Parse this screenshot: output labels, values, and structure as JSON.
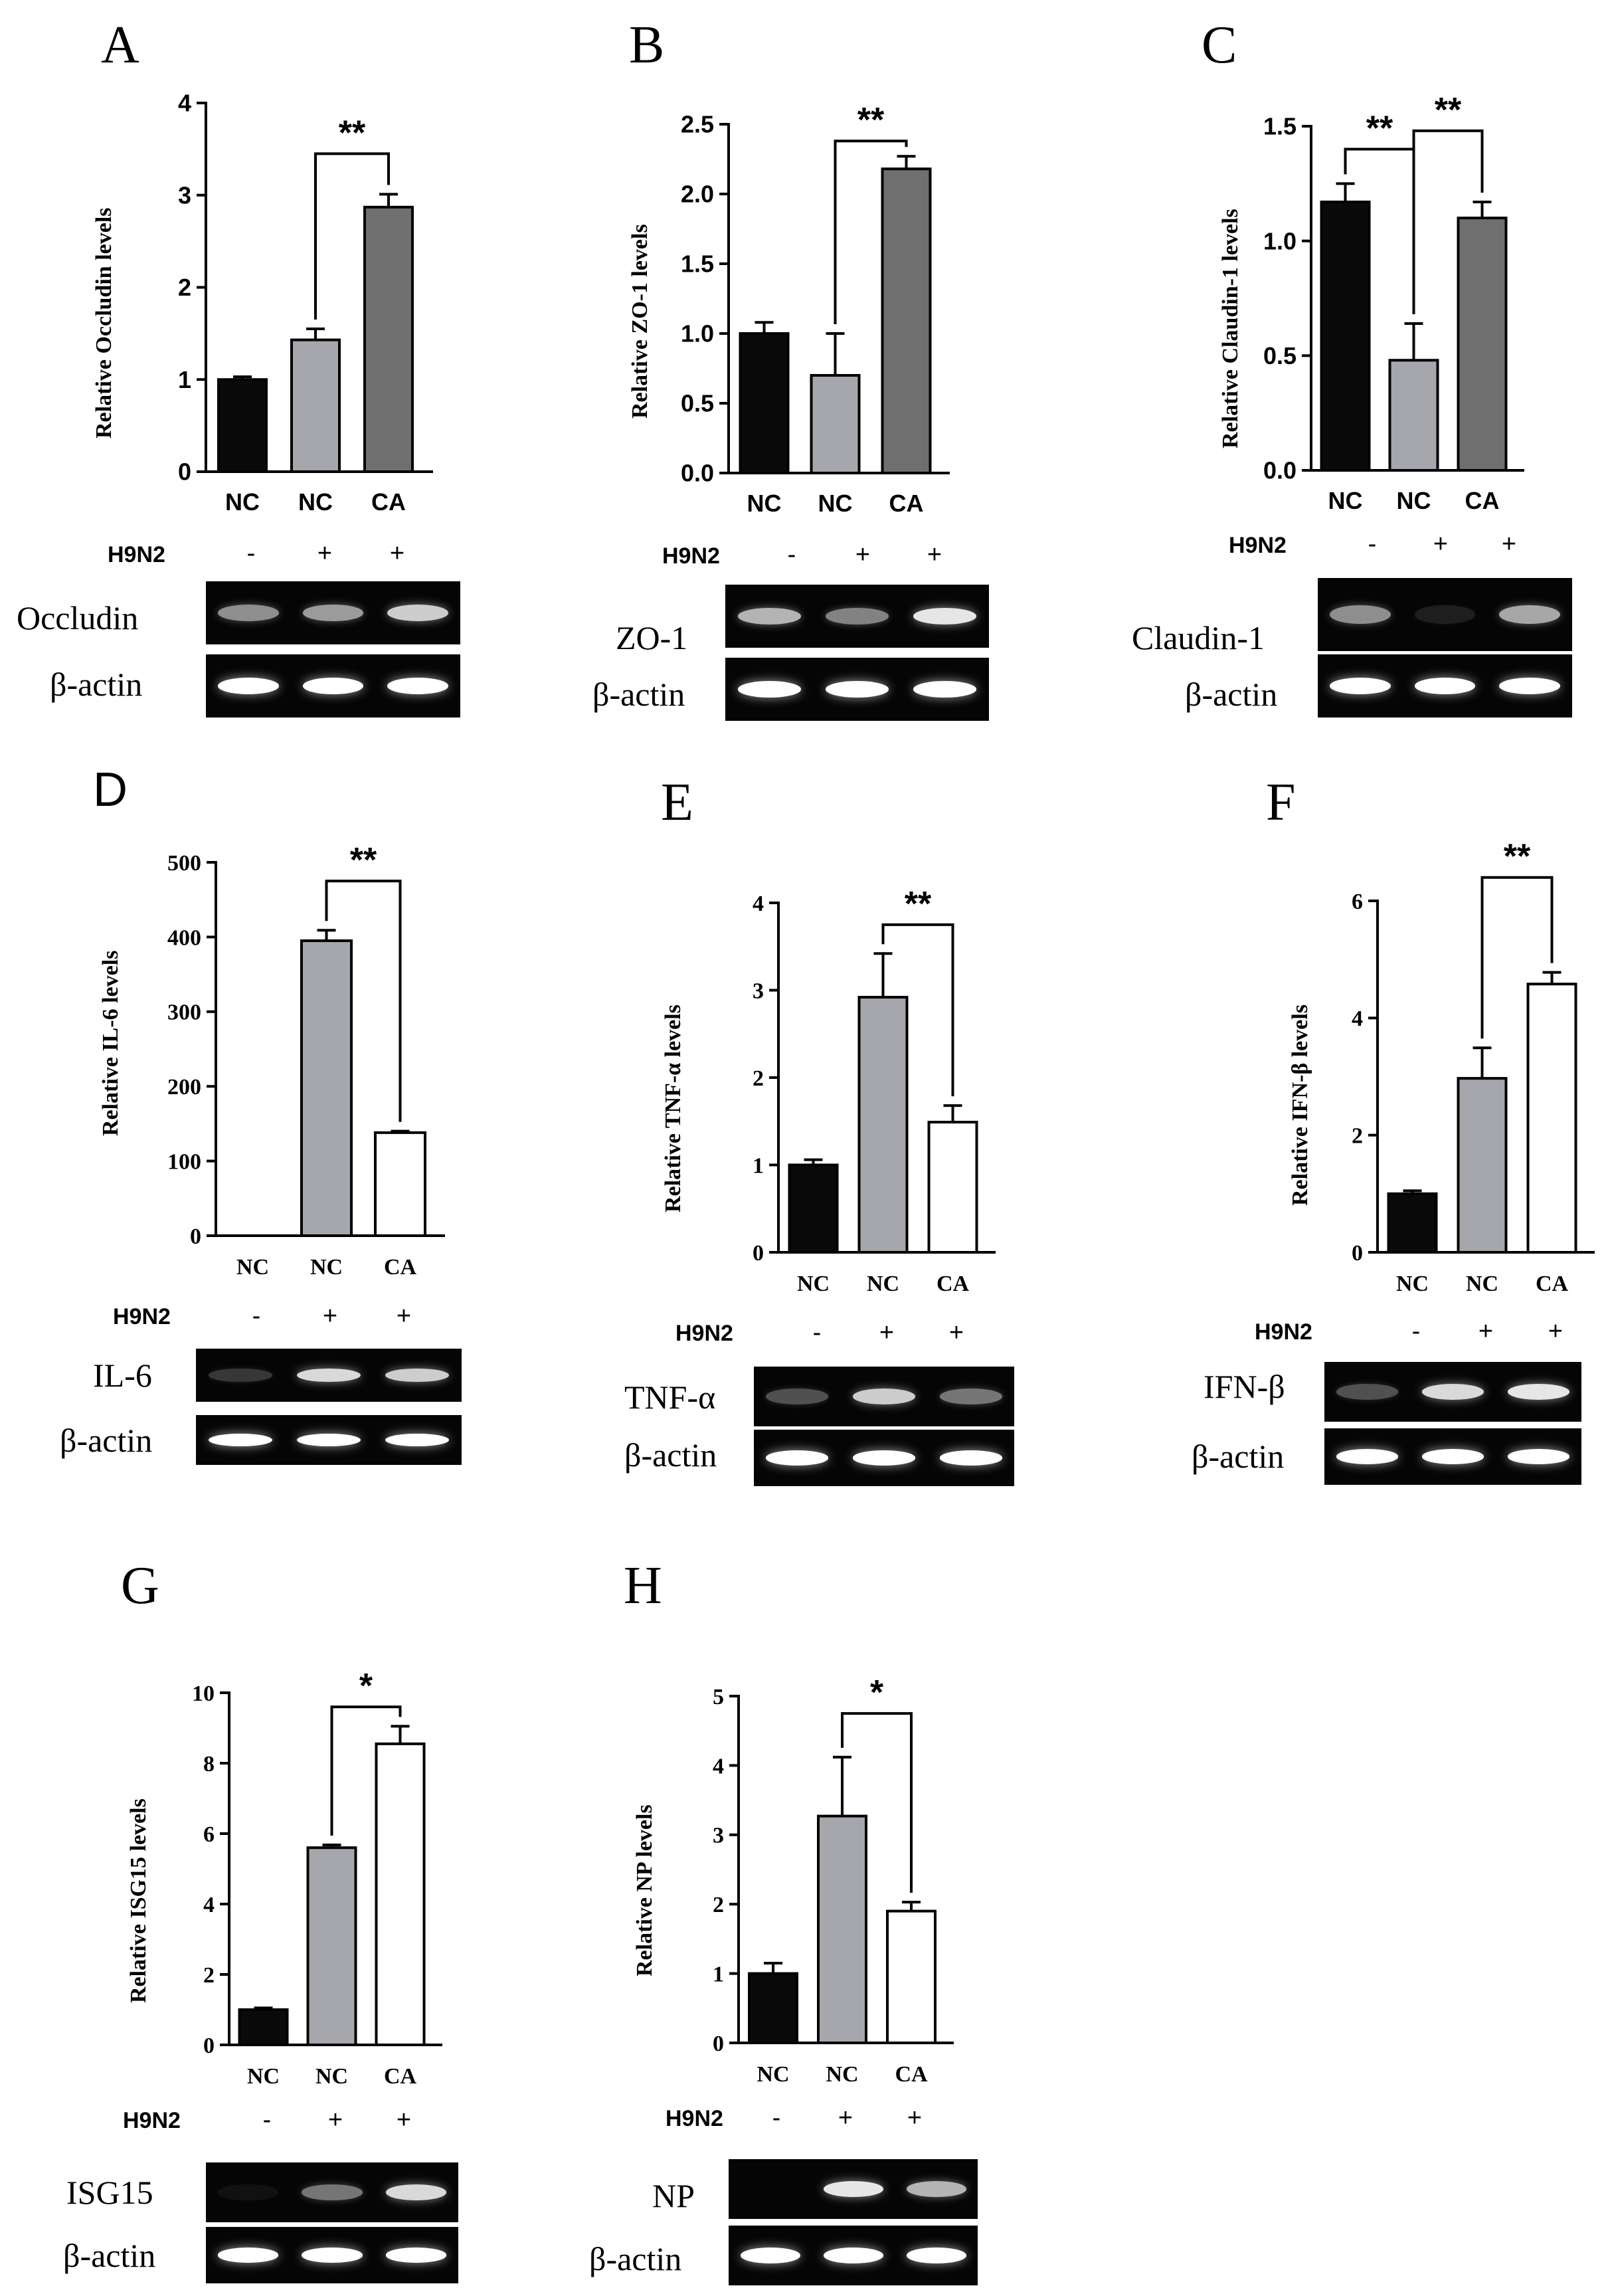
{
  "colors": {
    "black": "#0a0a0a",
    "light_gray": "#a6a6ad",
    "dark_gray": "#6f6f6f",
    "white": "#ffffff"
  },
  "common": {
    "h9n2": "H9N2",
    "beta_actin": "β-actin"
  },
  "panels": [
    {
      "label": "A",
      "ylabel": "Relative Occludin levels",
      "blot": "Occludin",
      "h9n2_signs": [
        "-",
        "+",
        "+"
      ],
      "band_intensity": [
        0.55,
        0.6,
        0.8
      ],
      "chart_data": {
        "type": "bar",
        "categories": [
          "NC",
          "NC",
          "CA"
        ],
        "values": [
          1.0,
          1.43,
          2.87
        ],
        "errors": [
          0.03,
          0.12,
          0.14
        ],
        "bar_colors": [
          "#0a0a0a",
          "#a6a6ad",
          "#6f6f6f"
        ],
        "ylim": [
          0,
          4
        ],
        "yticks": [
          "0",
          "1",
          "2",
          "3",
          "4"
        ],
        "significance": [
          {
            "from": 1,
            "to": 2,
            "label": "**",
            "level": 3.45
          }
        ]
      }
    },
    {
      "label": "B",
      "ylabel": "Relative ZO-1 levels",
      "blot": "ZO-1",
      "h9n2_signs": [
        "-",
        "+",
        "+"
      ],
      "band_intensity": [
        0.7,
        0.5,
        0.9
      ],
      "chart_data": {
        "type": "bar",
        "categories": [
          "NC",
          "NC",
          "CA"
        ],
        "values": [
          1.0,
          0.7,
          2.18
        ],
        "errors": [
          0.08,
          0.3,
          0.09
        ],
        "bar_colors": [
          "#0a0a0a",
          "#a6a6ad",
          "#6f6f6f"
        ],
        "ylim": [
          0,
          2.5
        ],
        "yticks": [
          "0.0",
          "0.5",
          "1.0",
          "1.5",
          "2.0",
          "2.5"
        ],
        "significance": [
          {
            "from": 1,
            "to": 2,
            "label": "**",
            "level": 2.38
          }
        ]
      }
    },
    {
      "label": "C",
      "ylabel": "Relative Claudin-1 levels",
      "blot": "Claudin-1",
      "h9n2_signs": [
        "-",
        "+",
        "+"
      ],
      "band_intensity": [
        0.55,
        0.1,
        0.65
      ],
      "chart_data": {
        "type": "bar",
        "categories": [
          "NC",
          "NC",
          "CA"
        ],
        "values": [
          1.17,
          0.48,
          1.1
        ],
        "errors": [
          0.08,
          0.16,
          0.07
        ],
        "bar_colors": [
          "#0a0a0a",
          "#a6a6ad",
          "#6f6f6f"
        ],
        "ylim": [
          0,
          1.5
        ],
        "yticks": [
          "0.0",
          "0.5",
          "1.0",
          "1.5"
        ],
        "significance": [
          {
            "from": 0,
            "to": 1,
            "label": "**",
            "level": 1.4
          },
          {
            "from": 1,
            "to": 2,
            "label": "**",
            "level": 1.48
          }
        ]
      }
    },
    {
      "label": "D",
      "ylabel": "Relative  IL-6 levels",
      "blot": "IL-6",
      "h9n2_signs": [
        "-",
        "+",
        "+"
      ],
      "band_intensity": [
        0.2,
        0.85,
        0.8
      ],
      "chart_data": {
        "type": "bar",
        "categories": [
          "NC",
          "NC",
          "CA"
        ],
        "values": [
          0,
          395,
          138
        ],
        "errors": [
          0,
          14,
          2
        ],
        "bar_colors": [
          "#0a0a0a",
          "#a6a6ad",
          "#ffffff"
        ],
        "ylim": [
          0,
          500
        ],
        "yticks": [
          "0",
          "100",
          "200",
          "300",
          "400",
          "500"
        ],
        "significance": [
          {
            "from": 1,
            "to": 2,
            "label": "**",
            "level": 475
          }
        ]
      }
    },
    {
      "label": "E",
      "ylabel": "Relative  TNF-α levels",
      "blot": "TNF-α",
      "h9n2_signs": [
        "-",
        "+",
        "+"
      ],
      "band_intensity": [
        0.3,
        0.8,
        0.45
      ],
      "chart_data": {
        "type": "bar",
        "categories": [
          "NC",
          "NC",
          "CA"
        ],
        "values": [
          1.0,
          2.92,
          1.49
        ],
        "errors": [
          0.06,
          0.5,
          0.19
        ],
        "bar_colors": [
          "#0a0a0a",
          "#a6a6ad",
          "#ffffff"
        ],
        "ylim": [
          0,
          4
        ],
        "yticks": [
          "0",
          "1",
          "2",
          "3",
          "4"
        ],
        "significance": [
          {
            "from": 1,
            "to": 2,
            "label": "**",
            "level": 3.75
          }
        ]
      }
    },
    {
      "label": "F",
      "ylabel": "Relative  IFN-β levels",
      "blot": "IFN-β",
      "h9n2_signs": [
        "-",
        "+",
        "+"
      ],
      "band_intensity": [
        0.3,
        0.85,
        0.9
      ],
      "chart_data": {
        "type": "bar",
        "categories": [
          "NC",
          "NC",
          "CA"
        ],
        "values": [
          1.0,
          2.97,
          4.58
        ],
        "errors": [
          0.05,
          0.52,
          0.2
        ],
        "bar_colors": [
          "#0a0a0a",
          "#a6a6ad",
          "#ffffff"
        ],
        "ylim": [
          0,
          6
        ],
        "yticks": [
          "0",
          "2",
          "4",
          "6"
        ],
        "significance": [
          {
            "from": 1,
            "to": 2,
            "label": "**",
            "level": 6.4
          }
        ]
      }
    },
    {
      "label": "G",
      "ylabel": "Relative  ISG15 levels",
      "blot": "ISG15",
      "h9n2_signs": [
        "-",
        "+",
        "+"
      ],
      "band_intensity": [
        0.05,
        0.45,
        0.85
      ],
      "chart_data": {
        "type": "bar",
        "categories": [
          "NC",
          "NC",
          "CA"
        ],
        "values": [
          1.0,
          5.6,
          8.55
        ],
        "errors": [
          0.05,
          0.08,
          0.5
        ],
        "bar_colors": [
          "#0a0a0a",
          "#a6a6ad",
          "#ffffff"
        ],
        "ylim": [
          0,
          10
        ],
        "yticks": [
          "0",
          "2",
          "4",
          "6",
          "8",
          "10"
        ],
        "significance": [
          {
            "from": 1,
            "to": 2,
            "label": "*",
            "level": 9.6
          }
        ]
      }
    },
    {
      "label": "H",
      "ylabel": "Relative NP levels",
      "blot": "NP",
      "h9n2_signs": [
        "-",
        "+",
        "+"
      ],
      "band_intensity": [
        0.0,
        0.9,
        0.7
      ],
      "chart_data": {
        "type": "bar",
        "categories": [
          "NC",
          "NC",
          "CA"
        ],
        "values": [
          1.0,
          3.27,
          1.9
        ],
        "errors": [
          0.15,
          0.85,
          0.13
        ],
        "bar_colors": [
          "#0a0a0a",
          "#a6a6ad",
          "#ffffff"
        ],
        "ylim": [
          0,
          5
        ],
        "yticks": [
          "0",
          "1",
          "2",
          "3",
          "4",
          "5"
        ],
        "significance": [
          {
            "from": 1,
            "to": 2,
            "label": "*",
            "level": 4.75
          }
        ]
      }
    }
  ]
}
